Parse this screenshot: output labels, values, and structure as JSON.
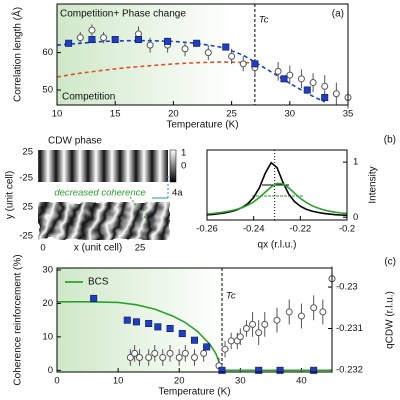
{
  "chart_data": [
    {
      "type": "xy",
      "panel_label": "(a)",
      "xlabel": "Temperature (K)",
      "ylabel": "Correlation length (Å)",
      "xlim": [
        10,
        35
      ],
      "ylim": [
        46,
        73
      ],
      "xticks": [
        10,
        15,
        20,
        25,
        30,
        35
      ],
      "yticks": [
        50,
        60
      ],
      "tc": 27,
      "tc_label": "Tc",
      "annotations": [
        {
          "text": "Competition+ Phase change",
          "color": "#1f3fbf"
        },
        {
          "text": "Competition",
          "color": "#e0502a"
        }
      ],
      "series": [
        {
          "marker": "line",
          "color": "#1f3fbf",
          "dash": true,
          "x": [
            10,
            12,
            14,
            16,
            18,
            20,
            22,
            24,
            25,
            26,
            27,
            28,
            29,
            30,
            31,
            32,
            33
          ],
          "values": [
            62,
            62.5,
            63,
            63.2,
            63.2,
            63,
            62.5,
            61.5,
            60.5,
            59.3,
            57.5,
            55.6,
            53.7,
            51.8,
            50,
            48.3,
            46.8
          ]
        },
        {
          "marker": "line",
          "color": "#e0502a",
          "dash": true,
          "x": [
            10,
            12,
            14,
            16,
            18,
            20,
            22,
            24,
            26,
            27
          ],
          "values": [
            53.5,
            54.5,
            55.3,
            56,
            56.5,
            57,
            57.3,
            57.5,
            57.4,
            57.2
          ]
        },
        {
          "marker": "circle",
          "color": "#555555",
          "x": [
            12,
            13,
            14,
            17,
            18,
            19.5,
            21,
            23,
            25,
            26,
            27,
            29,
            30,
            31,
            32,
            33,
            34,
            35
          ],
          "values": [
            64,
            66,
            64,
            65,
            62,
            62,
            61,
            60,
            59,
            57,
            56,
            55,
            54,
            53,
            52,
            51,
            49,
            48
          ],
          "errors": [
            1.5,
            1.5,
            1.5,
            2,
            2,
            2,
            2,
            2,
            2,
            2,
            2,
            2.5,
            2.5,
            2.5,
            2.5,
            3,
            3,
            3
          ]
        },
        {
          "marker": "square",
          "color": "#1f3fbf",
          "x": [
            11,
            13,
            15,
            17,
            19.5,
            22,
            24.5,
            27,
            29.5,
            31.5,
            33
          ],
          "values": [
            62.5,
            63.5,
            63.5,
            63.5,
            63,
            62.5,
            61.5,
            57,
            53,
            50,
            48
          ]
        }
      ]
    },
    {
      "type": "xy",
      "panel_label": "(b)",
      "xlabel": "qx (r.l.u.)",
      "ylabel": "Intensity",
      "y_axis_side": "right",
      "xlim": [
        -0.26,
        -0.2
      ],
      "ylim": [
        -0.05,
        1.22
      ],
      "xticks": [
        -0.26,
        -0.24,
        -0.22,
        -0.2
      ],
      "yticks": [
        0,
        1
      ],
      "peak_x": -0.231,
      "series": [
        {
          "marker": "line",
          "color": "#000000",
          "x": [
            -0.26,
            -0.2575,
            -0.255,
            -0.2525,
            -0.25,
            -0.2475,
            -0.245,
            -0.2425,
            -0.24,
            -0.2375,
            -0.235,
            -0.2325,
            -0.23,
            -0.2275,
            -0.225,
            -0.2225,
            -0.22,
            -0.2175,
            -0.215,
            -0.2125,
            -0.21,
            -0.2075,
            -0.205,
            -0.2025,
            -0.2
          ],
          "values": [
            0.044,
            0.052,
            0.064,
            0.079,
            0.1,
            0.13,
            0.176,
            0.246,
            0.36,
            0.54,
            0.8,
            0.99,
            0.9,
            0.64,
            0.42,
            0.285,
            0.2,
            0.146,
            0.111,
            0.087,
            0.069,
            0.057,
            0.047,
            0.04,
            0.034
          ]
        },
        {
          "marker": "line",
          "color": "#2ca02c",
          "x": [
            -0.26,
            -0.2575,
            -0.255,
            -0.2525,
            -0.25,
            -0.2475,
            -0.245,
            -0.2425,
            -0.24,
            -0.2375,
            -0.235,
            -0.2325,
            -0.23,
            -0.2275,
            -0.225,
            -0.2225,
            -0.22,
            -0.2175,
            -0.215,
            -0.2125,
            -0.21,
            -0.2075,
            -0.205,
            -0.2025,
            -0.2
          ],
          "values": [
            0.058,
            0.068,
            0.08,
            0.095,
            0.115,
            0.14,
            0.174,
            0.22,
            0.28,
            0.36,
            0.456,
            0.55,
            0.614,
            0.606,
            0.534,
            0.437,
            0.343,
            0.267,
            0.21,
            0.167,
            0.134,
            0.11,
            0.092,
            0.077,
            0.066
          ]
        }
      ]
    },
    {
      "type": "xy",
      "panel_label": "(c)",
      "xlabel": "Temperature (K)",
      "ylabel": "Coherence reinforcement (%)",
      "y2label": "qCDW (r.l.u.)",
      "xlim": [
        0,
        45
      ],
      "ylim": [
        -0.5,
        30.6
      ],
      "y2lim": [
        -0.23205,
        -0.22954
      ],
      "xticks": [
        0,
        10,
        20,
        30,
        40
      ],
      "yticks": [
        0,
        10,
        20,
        30
      ],
      "y2ticks": [
        -0.232,
        -0.231,
        -0.23
      ],
      "tc": 27,
      "tc_label": "Tc",
      "legend": "upper left",
      "series": [
        {
          "name": "BCS",
          "marker": "line",
          "color": "#2ca02c",
          "x": [
            0,
            5,
            10,
            13,
            16,
            19,
            21,
            23,
            25,
            26,
            27,
            30,
            35,
            40,
            45
          ],
          "values": [
            20.5,
            20.5,
            20.3,
            19.6,
            18.3,
            16.2,
            14.3,
            11.6,
            7.8,
            5,
            0,
            0,
            0,
            0,
            0
          ]
        },
        {
          "marker": "circle",
          "color": "#555555",
          "axis": "y2",
          "x": [
            12,
            12.7,
            13.5,
            15,
            16,
            17.3,
            18.5,
            20,
            21,
            22.5,
            24,
            26.5,
            27.5,
            28.5,
            29.5,
            30,
            31,
            32,
            33,
            34,
            36,
            38,
            40,
            42,
            43.5,
            45
          ],
          "values": [
            -0.2317,
            -0.2316,
            -0.2317,
            -0.2317,
            -0.2316,
            -0.2317,
            -0.2316,
            -0.2317,
            -0.2316,
            -0.2317,
            -0.2316,
            -0.2319,
            -0.2315,
            -0.2313,
            -0.2313,
            -0.2312,
            -0.231,
            -0.2309,
            -0.2311,
            -0.2309,
            -0.2308,
            -0.2306,
            -0.2307,
            -0.2305,
            -0.2306,
            -0.2298
          ],
          "errors": [
            0.0002,
            0.0002,
            0.0002,
            0.0002,
            0.0002,
            0.0002,
            0.0002,
            0.0002,
            0.0002,
            0.0002,
            0.0002,
            0.0002,
            0.0002,
            0.0002,
            0.0002,
            0.0002,
            0.0002,
            0.0003,
            0.0003,
            0.0003,
            0.0003,
            0.0003,
            0.0003,
            0.0003,
            0.0003,
            0.0003
          ]
        },
        {
          "marker": "square",
          "color": "#1f3fbf",
          "x": [
            6,
            11.5,
            13,
            15,
            16.5,
            18.5,
            20.5,
            22.5,
            24.5,
            27,
            33,
            36.5,
            42
          ],
          "values": [
            21.5,
            15,
            14.5,
            14,
            13,
            12.5,
            11,
            9,
            7,
            0,
            0,
            0,
            0
          ]
        }
      ]
    }
  ],
  "cdw_maps": {
    "title": "CDW phase",
    "colorbar_ticks": [
      1,
      0
    ],
    "y_ticks_top": [
      25,
      -25
    ],
    "y_ticks_bottom": [
      25,
      -25
    ],
    "y_label": "y (unit cell)",
    "x_label": "x (unit cell)",
    "x_ticks": [
      0,
      25
    ],
    "annotation": "decreased coherence",
    "period": "4a"
  }
}
